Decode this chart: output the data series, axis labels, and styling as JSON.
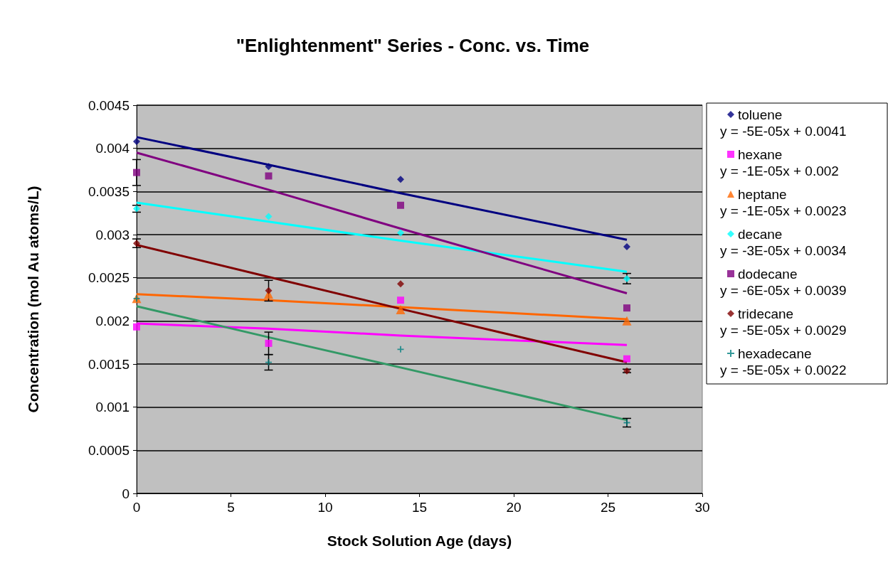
{
  "chart_data": {
    "type": "scatter",
    "title": "\"Enlightenment\" Series - Conc. vs. Time",
    "xlabel": "Stock Solution Age (days)",
    "ylabel": "Concentration (mol Au atoms/L)",
    "x": [
      0,
      7,
      14,
      26
    ],
    "series": [
      {
        "name": "toluene",
        "color": "#000080",
        "marker": "diamond",
        "values": [
          0.00408,
          0.00379,
          0.00364,
          0.00286
        ]
      },
      {
        "type": "line",
        "color": "#000080",
        "values": [
          0.00413,
          0.00381,
          0.00348,
          0.00294
        ]
      },
      {
        "name": "hexane",
        "color": "#ff00ff",
        "marker": "square",
        "values": [
          0.00193,
          0.00174,
          0.00224,
          0.00156
        ],
        "errors": [
          null,
          0.00013,
          null,
          null
        ]
      },
      {
        "type": "line",
        "color": "#ff00ff",
        "values": [
          0.00197,
          0.00191,
          0.00183,
          0.00172
        ]
      },
      {
        "name": "heptane",
        "color": "#ff6600",
        "marker": "triangle",
        "values": [
          0.00226,
          0.00231,
          0.00213,
          0.002
        ]
      },
      {
        "type": "line",
        "color": "#ff6600",
        "values": [
          0.00231,
          0.00224,
          0.00216,
          0.00202
        ]
      },
      {
        "name": "decane",
        "color": "#00ffff",
        "marker": "diamond",
        "values": [
          0.0033,
          0.00321,
          0.00302,
          0.00249
        ],
        "errors": [
          4e-05,
          null,
          null,
          6e-05
        ]
      },
      {
        "type": "line",
        "color": "#00ffff",
        "values": [
          0.00337,
          0.00315,
          0.00293,
          0.00257
        ]
      },
      {
        "name": "dodecane",
        "color": "#800080",
        "marker": "square",
        "values": [
          0.00372,
          0.00368,
          0.00334,
          0.00215
        ],
        "errors": [
          0.00015,
          null,
          null,
          null
        ]
      },
      {
        "type": "line",
        "color": "#800080",
        "values": [
          0.00395,
          0.00352,
          0.00307,
          0.00232
        ]
      },
      {
        "name": "tridecane",
        "color": "#800000",
        "marker": "diamond",
        "values": [
          0.0029,
          0.00235,
          0.00243,
          0.00142
        ],
        "errors": [
          5e-05,
          0.00012,
          null,
          2e-05
        ]
      },
      {
        "type": "line",
        "color": "#800000",
        "values": [
          0.00288,
          0.00251,
          0.00214,
          0.00152
        ]
      },
      {
        "name": "hexadecane",
        "color": "#008080",
        "marker": "cross",
        "values": [
          0.00226,
          0.00152,
          0.00167,
          0.00082
        ],
        "errors": [
          null,
          9e-05,
          null,
          5e-05
        ]
      },
      {
        "type": "line",
        "color": "#339966",
        "values": [
          0.00217,
          0.00181,
          0.00146,
          0.00085
        ]
      }
    ],
    "xlim": [
      0,
      30
    ],
    "xticks": [
      0,
      5,
      10,
      15,
      20,
      25,
      30
    ],
    "ylim": [
      0,
      0.0045
    ],
    "yticks": [
      0,
      0.0005,
      0.001,
      0.0015,
      0.002,
      0.0025,
      0.003,
      0.0035,
      0.004,
      0.0045
    ],
    "annotations": [
      "y = -5E-05x + 0.0041",
      "y = -1E-05x + 0.002",
      "y = -1E-05x + 0.0023",
      "y = -3E-05x + 0.0034",
      "y = -6E-05x + 0.0039",
      "y = -5E-05x + 0.0029",
      "y = -5E-05x + 0.0022"
    ],
    "grid": "y",
    "legend": "right"
  }
}
